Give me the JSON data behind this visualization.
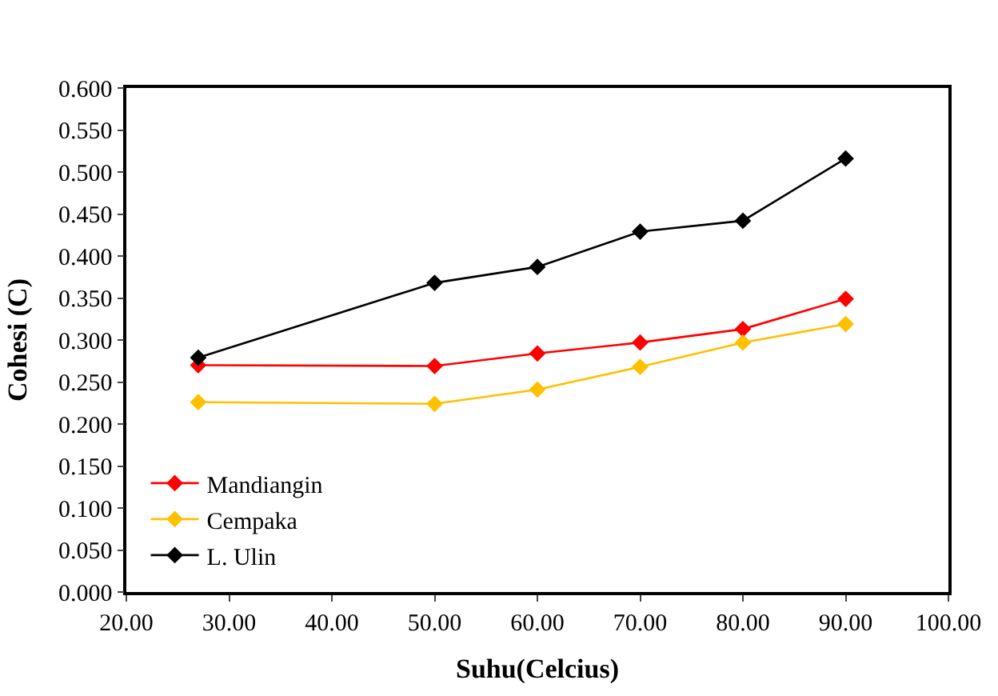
{
  "chart_data": {
    "type": "line",
    "xlabel": "Suhu(Celcius)",
    "ylabel": "Cohesi (C)",
    "x": [
      27,
      50,
      60,
      70,
      80,
      90
    ],
    "series": [
      {
        "name": "Mandiangin",
        "color": "#ff0000",
        "values": [
          0.27,
          0.269,
          0.284,
          0.297,
          0.313,
          0.349
        ]
      },
      {
        "name": "Cempaka",
        "color": "#ffc000",
        "values": [
          0.226,
          0.224,
          0.241,
          0.268,
          0.297,
          0.319
        ]
      },
      {
        "name": "L. Ulin",
        "color": "#000000",
        "values": [
          0.279,
          0.368,
          0.387,
          0.429,
          0.442,
          0.516
        ]
      }
    ],
    "xlim": [
      20,
      100
    ],
    "xticks": [
      {
        "value": 20,
        "label": "20.00"
      },
      {
        "value": 30,
        "label": "30.00"
      },
      {
        "value": 40,
        "label": "40.00"
      },
      {
        "value": 50,
        "label": "50.00"
      },
      {
        "value": 60,
        "label": "60.00"
      },
      {
        "value": 70,
        "label": "70.00"
      },
      {
        "value": 80,
        "label": "80.00"
      },
      {
        "value": 90,
        "label": "90.00"
      },
      {
        "value": 100,
        "label": "100.00"
      }
    ],
    "ylim": [
      0,
      0.6
    ],
    "yticks": [
      {
        "value": 0,
        "label": "0.000"
      },
      {
        "value": 0.05,
        "label": "0.050"
      },
      {
        "value": 0.1,
        "label": "0.100"
      },
      {
        "value": 0.15,
        "label": "0.150"
      },
      {
        "value": 0.2,
        "label": "0.200"
      },
      {
        "value": 0.25,
        "label": "0.250"
      },
      {
        "value": 0.3,
        "label": "0.300"
      },
      {
        "value": 0.35,
        "label": "0.350"
      },
      {
        "value": 0.4,
        "label": "0.400"
      },
      {
        "value": 0.45,
        "label": "0.450"
      },
      {
        "value": 0.5,
        "label": "0.500"
      },
      {
        "value": 0.55,
        "label": "0.550"
      },
      {
        "value": 0.6,
        "label": "0.600"
      }
    ],
    "grid": false,
    "legend": "bottom left",
    "marker": "diamond",
    "line_style": "solid"
  }
}
